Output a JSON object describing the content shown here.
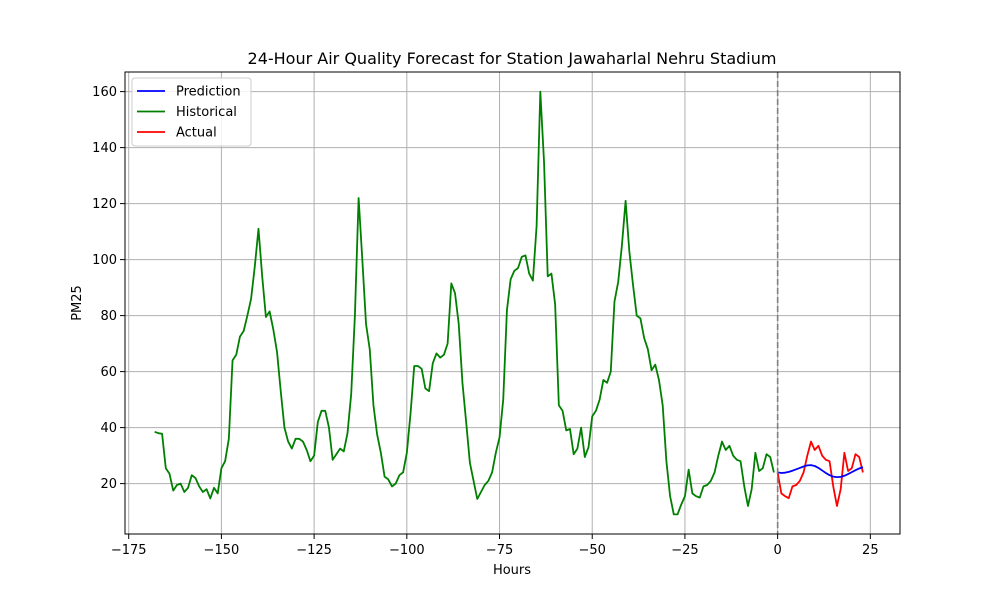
{
  "chart_data": {
    "type": "line",
    "title": "24-Hour Air Quality Forecast for Station Jawaharlal Nehru Stadium",
    "xlabel": "Hours",
    "ylabel": "PM25",
    "xlim": [
      -176,
      33
    ],
    "ylim": [
      2,
      167
    ],
    "x_ticks": [
      -175,
      -150,
      -125,
      -100,
      -75,
      -50,
      -25,
      0,
      25
    ],
    "y_ticks": [
      20,
      40,
      60,
      80,
      100,
      120,
      140,
      160
    ],
    "grid": true,
    "legend_position": "top-left",
    "vline": {
      "x": 0,
      "color": "#808080",
      "style": "dashed"
    },
    "series": [
      {
        "name": "Prediction",
        "color": "#0000ff",
        "x": [
          0,
          1,
          2,
          3,
          4,
          5,
          6,
          7,
          8,
          9,
          10,
          11,
          12,
          13,
          14,
          15,
          16,
          17,
          18,
          19,
          20,
          21,
          22,
          23
        ],
        "y": [
          24,
          23.8,
          23.9,
          24.2,
          24.6,
          25.1,
          25.6,
          26.1,
          26.5,
          26.6,
          26.3,
          25.6,
          24.7,
          23.8,
          23,
          22.5,
          22.3,
          22.4,
          22.8,
          23.4,
          24.1,
          24.8,
          25.4,
          25.9
        ]
      },
      {
        "name": "Historical",
        "color": "#008000",
        "x": [
          -168,
          -167,
          -166,
          -165,
          -164,
          -163,
          -162,
          -161,
          -160,
          -159,
          -158,
          -157,
          -156,
          -155,
          -154,
          -153,
          -152,
          -151,
          -150,
          -149,
          -148,
          -147,
          -146,
          -145,
          -144,
          -143,
          -142,
          -141,
          -140,
          -139,
          -138,
          -137,
          -136,
          -135,
          -134,
          -133,
          -132,
          -131,
          -130,
          -129,
          -128,
          -127,
          -126,
          -125,
          -124,
          -123,
          -122,
          -121,
          -120,
          -119,
          -118,
          -117,
          -116,
          -115,
          -114,
          -113,
          -112,
          -111,
          -110,
          -109,
          -108,
          -107,
          -106,
          -105,
          -104,
          -103,
          -102,
          -101,
          -100,
          -99,
          -98,
          -97,
          -96,
          -95,
          -94,
          -93,
          -92,
          -91,
          -90,
          -89,
          -88,
          -87,
          -86,
          -85,
          -84,
          -83,
          -82,
          -81,
          -80,
          -79,
          -78,
          -77,
          -76,
          -75,
          -74,
          -73,
          -72,
          -71,
          -70,
          -69,
          -68,
          -67,
          -66,
          -65,
          -64,
          -63,
          -62,
          -61,
          -60,
          -59,
          -58,
          -57,
          -56,
          -55,
          -54,
          -53,
          -52,
          -51,
          -50,
          -49,
          -48,
          -47,
          -46,
          -45,
          -44,
          -43,
          -42,
          -41,
          -40,
          -39,
          -38,
          -37,
          -36,
          -35,
          -34,
          -33,
          -32,
          -31,
          -30,
          -29,
          -28,
          -27,
          -26,
          -25,
          -24,
          -23,
          -22,
          -21,
          -20,
          -19,
          -18,
          -17,
          -16,
          -15,
          -14,
          -13,
          -12,
          -11,
          -10,
          -9,
          -8,
          -7,
          -6,
          -5,
          -4,
          -3,
          -2,
          -1
        ],
        "y": [
          38.5,
          38,
          37.8,
          25.5,
          23.5,
          17.5,
          19.5,
          20,
          17,
          18.5,
          23,
          22,
          19,
          17,
          18,
          14.7,
          18.5,
          16.5,
          25.5,
          28,
          36,
          64,
          66,
          72.5,
          74.5,
          80,
          86,
          97.5,
          111,
          94,
          79.5,
          81.5,
          75,
          67,
          53,
          40,
          35,
          32.5,
          36,
          36,
          35,
          32,
          28,
          30,
          42,
          46,
          46,
          40,
          28.5,
          30.5,
          32.5,
          31.5,
          38,
          52,
          80,
          122,
          100,
          77,
          68,
          48,
          37.5,
          31,
          22.5,
          21.5,
          19,
          20,
          23,
          24,
          31,
          45,
          62,
          62,
          61,
          54,
          53,
          63,
          66.5,
          65,
          66,
          70,
          91.5,
          88,
          77,
          56,
          42,
          27.5,
          21,
          14.5,
          17,
          19.5,
          21,
          24,
          31,
          36.5,
          50,
          82,
          93,
          96,
          97,
          101,
          101.5,
          95,
          92.5,
          112,
          160,
          135,
          94,
          95,
          84,
          48,
          46,
          39,
          39.5,
          30.5,
          32.5,
          40,
          29.5,
          33,
          44,
          46,
          50,
          57,
          56,
          60,
          85,
          92,
          105,
          121,
          103,
          91,
          80,
          79,
          72,
          68,
          60.5,
          62.5,
          57,
          48,
          28,
          15.5,
          9,
          9,
          12.5,
          15.5,
          25,
          16.5,
          15.5,
          15,
          19,
          19.5,
          21,
          24,
          30,
          35,
          32,
          33.5,
          30,
          28.5,
          28,
          19,
          12,
          18,
          31,
          24.5,
          25.5,
          30.5,
          29.5,
          24
        ]
      },
      {
        "name": "Actual",
        "color": "#ff0000",
        "x": [
          0,
          1,
          2,
          3,
          4,
          5,
          6,
          7,
          8,
          9,
          10,
          11,
          12,
          13,
          14,
          15,
          16,
          17,
          18,
          19,
          20,
          21,
          22,
          23
        ],
        "y": [
          24,
          16.5,
          15.5,
          14.8,
          19,
          19.5,
          21,
          24,
          30,
          35,
          32,
          33.5,
          30,
          28.5,
          28,
          19,
          12,
          18,
          31,
          24.5,
          25.5,
          30.5,
          29.5,
          24
        ]
      }
    ]
  }
}
